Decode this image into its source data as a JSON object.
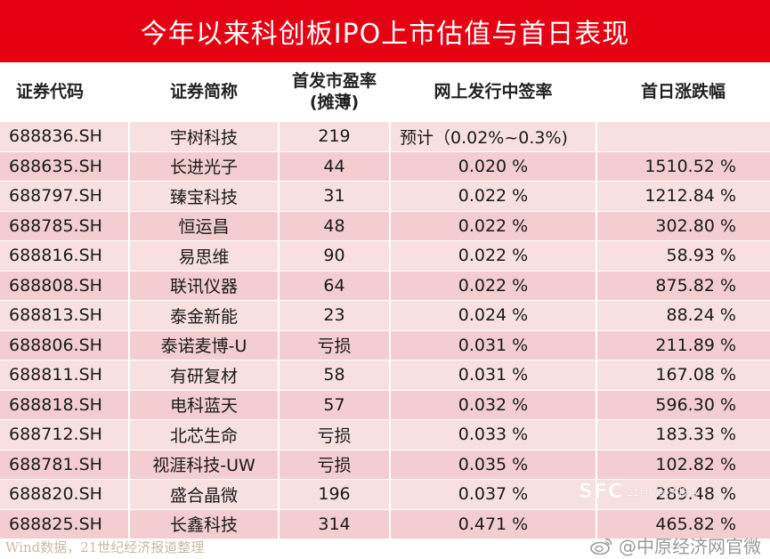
{
  "title": "今年以来科创板IPO上市估值与首日表现",
  "headers": {
    "code": "证券代码",
    "name": "证券简称",
    "pe_line1": "首发市盈率",
    "pe_line2": "(摊薄)",
    "rate": "网上发行中签率",
    "change": "首日涨跌幅"
  },
  "rows": [
    {
      "code": "688836.SH",
      "name": "宇树科技",
      "pe": "219",
      "rate": "预计（0.02%~0.3%)",
      "change": ""
    },
    {
      "code": "688635.SH",
      "name": "长进光子",
      "pe": "44",
      "rate": "0.020 %",
      "change": "1510.52 %"
    },
    {
      "code": "688797.SH",
      "name": "臻宝科技",
      "pe": "31",
      "rate": "0.022 %",
      "change": "1212.84 %"
    },
    {
      "code": "688785.SH",
      "name": "恒运昌",
      "pe": "48",
      "rate": "0.022 %",
      "change": "302.80 %"
    },
    {
      "code": "688816.SH",
      "name": "易思维",
      "pe": "90",
      "rate": "0.022 %",
      "change": "58.93 %"
    },
    {
      "code": "688808.SH",
      "name": "联讯仪器",
      "pe": "64",
      "rate": "0.022 %",
      "change": "875.82 %"
    },
    {
      "code": "688813.SH",
      "name": "泰金新能",
      "pe": "23",
      "rate": "0.024 %",
      "change": "88.24 %"
    },
    {
      "code": "688806.SH",
      "name": "泰诺麦博-U",
      "pe": "亏损",
      "rate": "0.031 %",
      "change": "211.89 %"
    },
    {
      "code": "688811.SH",
      "name": "有研复材",
      "pe": "58",
      "rate": "0.031 %",
      "change": "167.08 %"
    },
    {
      "code": "688818.SH",
      "name": "电科蓝天",
      "pe": "57",
      "rate": "0.032 %",
      "change": "596.30 %"
    },
    {
      "code": "688712.SH",
      "name": "北芯生命",
      "pe": "亏损",
      "rate": "0.033 %",
      "change": "183.33 %"
    },
    {
      "code": "688781.SH",
      "name": "视涯科技-UW",
      "pe": "亏损",
      "rate": "0.035 %",
      "change": "102.82 %"
    },
    {
      "code": "688820.SH",
      "name": "盛合晶微",
      "pe": "196",
      "rate": "0.037 %",
      "change": "289.48 %"
    },
    {
      "code": "688825.SH",
      "name": "长鑫科技",
      "pe": "314",
      "rate": "0.471 %",
      "change": "465.82 %"
    }
  ],
  "source": "Wind数据，21世纪经济报道整理",
  "weibo_handle": "@中原经济网官微",
  "watermark": {
    "mark": "SFC",
    "line": "21世纪经济报道"
  },
  "colors": {
    "title_bg": "#e50012",
    "row_light": "#f8e0e1",
    "row_dark": "#f3cdcf"
  }
}
